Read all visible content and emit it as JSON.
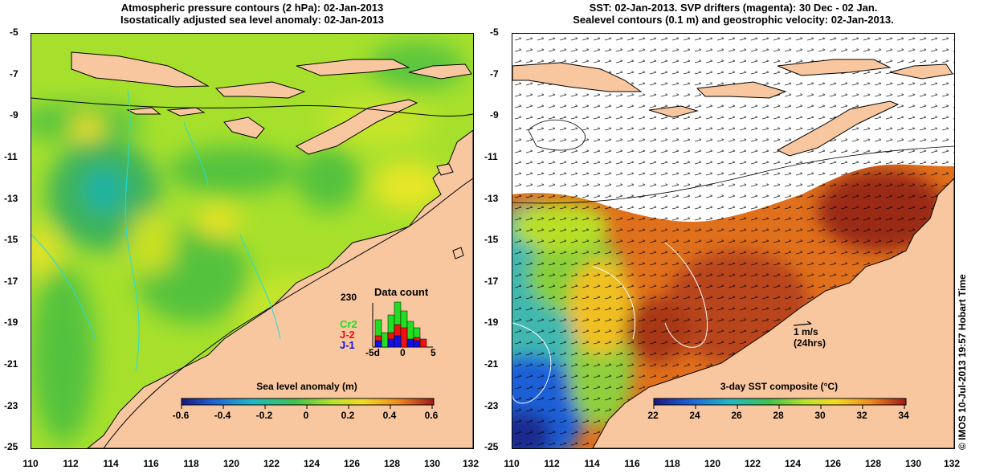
{
  "left_panel": {
    "title_line1": "Atmospheric pressure contours (2 hPa): 02-Jan-2013",
    "title_line2": "Isostatically adjusted sea level anomaly: 02-Jan-2013",
    "colorbar": {
      "title": "Sea level anomaly (m)",
      "labels": [
        "-0.6",
        "-0.4",
        "-0.2",
        "0",
        "0.2",
        "0.4",
        "0.6"
      ]
    },
    "data_count": {
      "title": "Data count",
      "max_label": "230",
      "missions": [
        {
          "name": "Cr2",
          "color": "#22dd22"
        },
        {
          "name": "J-2",
          "color": "#ee1111"
        },
        {
          "name": "J-1",
          "color": "#1111dd"
        }
      ],
      "x_labels": [
        "-5d",
        "0",
        "5"
      ]
    }
  },
  "right_panel": {
    "title_line1": "SST: 02-Jan-2013. SVP drifters (magenta): 30 Dec - 02 Jan.",
    "title_line2": "Sealevel contours (0.1 m) and geostrophic velocity: 02-Jan-2013.",
    "colorbar": {
      "title": "3-day SST composite (°C)",
      "labels": [
        "22",
        "24",
        "26",
        "28",
        "30",
        "32",
        "34"
      ]
    },
    "velocity_scale": {
      "speed": "1 m/s",
      "period": "(24hrs)"
    }
  },
  "axes": {
    "lat_labels": [
      "-5",
      "-7",
      "-9",
      "-11",
      "-13",
      "-15",
      "-17",
      "-19",
      "-21",
      "-23",
      "-25"
    ],
    "lon_labels": [
      "110",
      "112",
      "114",
      "116",
      "118",
      "120",
      "122",
      "124",
      "126",
      "128",
      "130",
      "132"
    ]
  },
  "credit": "© IMOS 10-Jul-2013 19:57 Hobart Time",
  "colors": {
    "land": "#f9c79f",
    "contour": "#000000",
    "cyan_contour": "#22dddd"
  }
}
